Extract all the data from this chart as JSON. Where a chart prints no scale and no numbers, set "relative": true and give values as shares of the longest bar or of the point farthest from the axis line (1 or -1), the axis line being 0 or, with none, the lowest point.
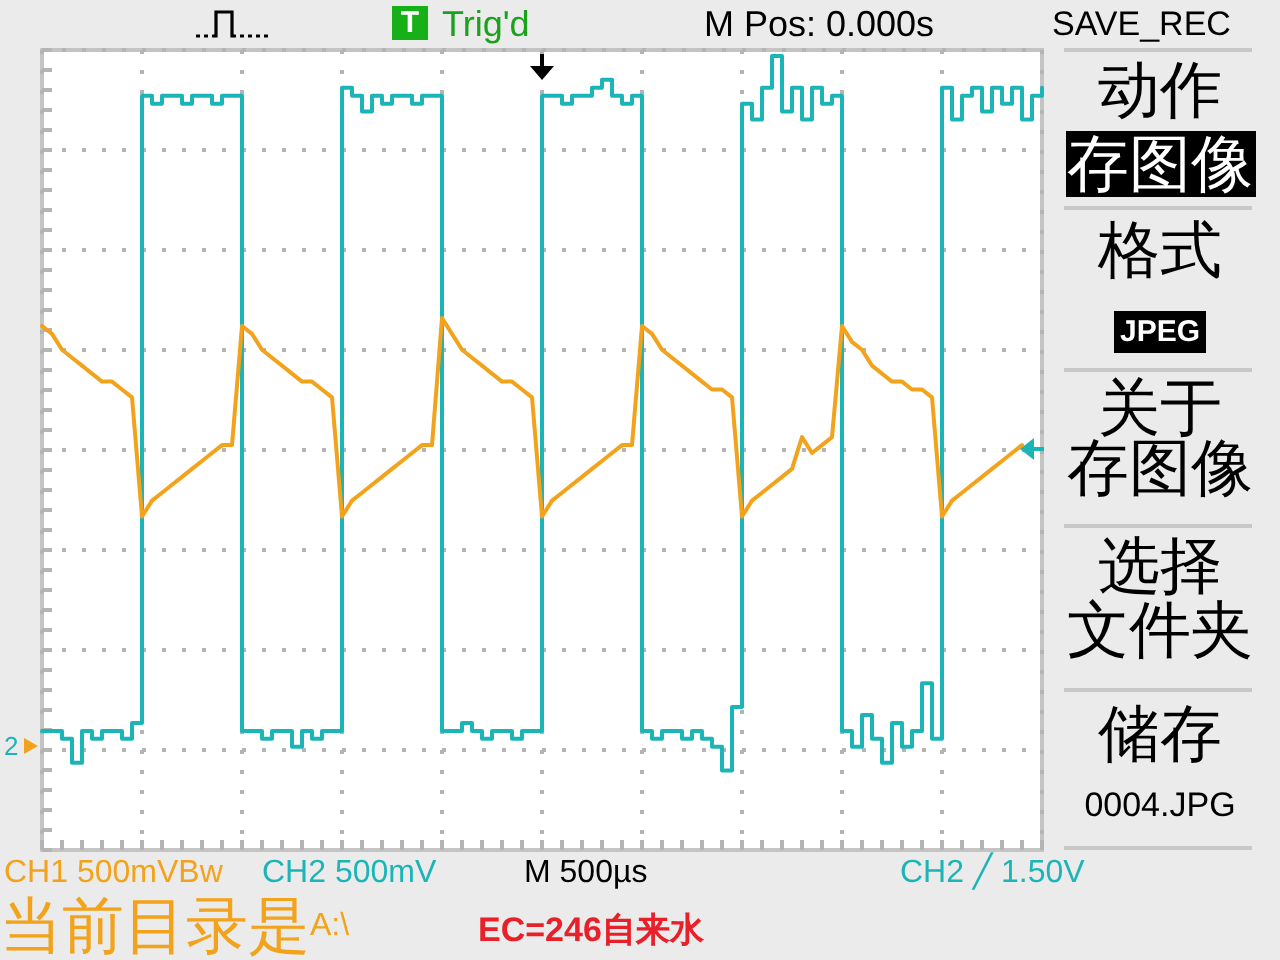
{
  "chart_data": [
    {
      "type": "line",
      "relative": true,
      "grid": true,
      "categories": [
        null,
        null,
        null,
        null,
        null,
        null,
        null,
        null,
        null,
        null,
        null,
        null,
        null,
        null,
        null,
        null,
        null,
        null,
        null,
        null,
        null,
        null,
        null,
        null,
        null,
        null,
        null,
        null,
        null,
        null,
        null,
        null,
        null,
        null,
        null,
        null,
        null,
        null,
        null,
        null,
        null,
        null,
        null,
        null,
        null,
        null,
        null,
        null,
        null,
        null,
        null,
        null,
        null,
        null,
        null,
        null,
        null,
        null,
        null,
        null,
        null,
        null,
        null,
        null,
        null,
        null,
        null,
        null,
        null,
        null,
        null,
        null,
        null,
        null,
        null,
        null,
        null,
        null,
        null,
        null,
        null,
        null,
        null,
        null,
        null,
        null,
        null,
        null,
        null,
        null,
        null,
        null,
        null,
        null,
        null,
        null,
        null,
        null,
        null,
        null,
        null
      ],
      "series": [
        {
          "type": "step",
          "color": "#1bb5b8",
          "values": [
            0.15,
            0.15,
            0.14,
            0.11,
            0.15,
            0.14,
            0.15,
            0.15,
            0.14,
            0.16,
            0.95,
            0.94,
            0.95,
            0.95,
            0.94,
            0.95,
            0.95,
            0.94,
            0.95,
            0.95,
            0.15,
            0.15,
            0.14,
            0.15,
            0.15,
            0.13,
            0.15,
            0.14,
            0.15,
            0.15,
            0.96,
            0.95,
            0.93,
            0.95,
            0.94,
            0.95,
            0.95,
            0.94,
            0.95,
            0.95,
            0.15,
            0.15,
            0.16,
            0.15,
            0.14,
            0.15,
            0.15,
            0.14,
            0.15,
            0.15,
            0.95,
            0.95,
            0.94,
            0.95,
            0.95,
            0.96,
            0.97,
            0.95,
            0.94,
            0.95,
            0.15,
            0.14,
            0.15,
            0.15,
            0.14,
            0.15,
            0.14,
            0.13,
            0.1,
            0.18,
            0.94,
            0.92,
            0.96,
            1,
            0.93,
            0.96,
            0.92,
            0.96,
            0.94,
            0.95,
            0.15,
            0.13,
            0.17,
            0.14,
            0.11,
            0.16,
            0.13,
            0.15,
            0.21,
            0.14,
            0.96,
            0.92,
            0.95,
            0.96,
            0.93,
            0.96,
            0.94,
            0.96,
            0.92,
            0.95,
            0.96
          ]
        },
        {
          "type": "line",
          "color": "#f2a31b",
          "values": [
            0.66,
            0.65,
            0.63,
            0.62,
            0.61,
            0.6,
            0.59,
            0.59,
            0.58,
            0.57,
            0.42,
            0.44,
            0.45,
            0.46,
            0.47,
            0.48,
            0.49,
            0.5,
            0.51,
            0.51,
            0.66,
            0.65,
            0.63,
            0.62,
            0.61,
            0.6,
            0.59,
            0.59,
            0.58,
            0.57,
            0.42,
            0.44,
            0.45,
            0.46,
            0.47,
            0.48,
            0.49,
            0.5,
            0.51,
            0.51,
            0.67,
            0.65,
            0.63,
            0.62,
            0.61,
            0.6,
            0.59,
            0.59,
            0.58,
            0.57,
            0.42,
            0.44,
            0.45,
            0.46,
            0.47,
            0.48,
            0.49,
            0.5,
            0.51,
            0.51,
            0.66,
            0.65,
            0.63,
            0.62,
            0.61,
            0.6,
            0.59,
            0.58,
            0.58,
            0.57,
            0.42,
            0.44,
            0.45,
            0.46,
            0.47,
            0.48,
            0.52,
            0.5,
            0.51,
            0.52,
            0.66,
            0.64,
            0.63,
            0.61,
            0.6,
            0.59,
            0.59,
            0.58,
            0.58,
            0.57,
            0.42,
            0.44,
            0.45,
            0.46,
            0.47,
            0.48,
            0.49,
            0.5,
            0.51,
            null,
            null
          ]
        }
      ],
      "annotations": [
        "T",
        "Trig'd",
        "M Pos: 0.000s",
        "CH1 500mVBw",
        "CH2 500mV",
        "M 500µs",
        "CH2 ╱ 1.50V",
        "当前目录是A:\\",
        "EC=246自来水",
        "2"
      ]
    },
    {
      "type": "other",
      "title": "SAVE_REC",
      "annotations": [
        "动作",
        "存图像",
        "格式",
        "JPEG",
        "关于",
        "存图像",
        "选择",
        "文件夹",
        "储存",
        "0004.JPG"
      ]
    }
  ]
}
